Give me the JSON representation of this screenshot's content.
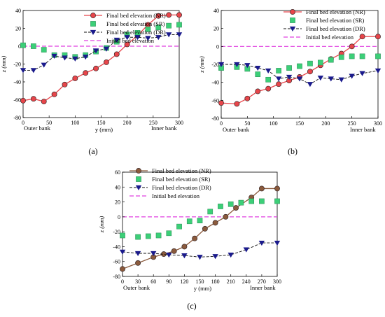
{
  "figure": {
    "colors": {
      "nr_a": "#e8454a",
      "nr_c": "#8b5a3c",
      "sr": "#3ccf78",
      "dr": "#1a1a8c",
      "initial": "#e040e0",
      "axis": "#000000"
    }
  },
  "chart_data": [
    {
      "type": "line",
      "panel_label": "(a)",
      "xlabel": "y (mm)",
      "ylabel": "z (mm)",
      "xlim": [
        0,
        300
      ],
      "ylim": [
        -80,
        40
      ],
      "xticks": [
        0,
        50,
        100,
        150,
        200,
        250,
        300
      ],
      "yticks": [
        -80,
        -60,
        -40,
        -20,
        0,
        20,
        40
      ],
      "annotations": [
        "Outer bank",
        "Inner bank"
      ],
      "legend_position": "top-right",
      "series": [
        {
          "name": "Final bed elevation (NR)",
          "key": "nr",
          "marker": "circle",
          "x": [
            0,
            20,
            40,
            60,
            80,
            100,
            120,
            140,
            160,
            180,
            200,
            220,
            240,
            260,
            280,
            300
          ],
          "y": [
            -61,
            -59,
            -62,
            -54,
            -43,
            -36,
            -30,
            -25,
            -18,
            -9,
            2,
            12,
            24,
            34,
            35,
            35
          ]
        },
        {
          "name": "Final bed elevation (SR)",
          "key": "sr",
          "marker": "square",
          "x": [
            0,
            20,
            40,
            60,
            80,
            100,
            120,
            140,
            160,
            180,
            200,
            220,
            240,
            260,
            280,
            300
          ],
          "y": [
            1,
            0,
            -4,
            -10,
            -10,
            -12,
            -10,
            -6,
            -2,
            5,
            13,
            15,
            19,
            21,
            23,
            24
          ]
        },
        {
          "name": "Final bed elevation (DR)",
          "key": "dr",
          "marker": "triangle-down",
          "x": [
            0,
            20,
            40,
            60,
            80,
            100,
            120,
            140,
            160,
            180,
            200,
            220,
            240,
            260,
            280,
            300
          ],
          "y": [
            -27,
            -27,
            -21,
            -11,
            -13,
            -14,
            -12,
            -5,
            -3,
            7,
            10,
            10,
            9,
            10,
            13,
            13
          ]
        },
        {
          "name": "Initial bed elevation",
          "key": "initial",
          "marker": "none",
          "x": [
            0,
            300
          ],
          "y": [
            0,
            0
          ]
        }
      ]
    },
    {
      "type": "line",
      "panel_label": "(b)",
      "xlabel": "",
      "ylabel": "z (mm)",
      "xlim": [
        0,
        300
      ],
      "ylim": [
        -80,
        40
      ],
      "xticks": [
        0,
        50,
        100,
        150,
        200,
        250,
        300
      ],
      "yticks": [
        -80,
        -60,
        -40,
        -20,
        0,
        20,
        40
      ],
      "annotations": [
        "Outer bank",
        "Inner bank"
      ],
      "legend_position": "top-right",
      "series": [
        {
          "name": "Final bed elevation (NR)",
          "key": "nr",
          "marker": "circle",
          "x": [
            0,
            30,
            50,
            70,
            90,
            110,
            130,
            150,
            170,
            190,
            210,
            230,
            250,
            270,
            300
          ],
          "y": [
            -63,
            -64,
            -58,
            -50,
            -47,
            -42,
            -38,
            -34,
            -28,
            -21,
            -14,
            -8,
            0,
            11,
            11
          ]
        },
        {
          "name": "Final bed elevation (SR)",
          "key": "sr",
          "marker": "square",
          "x": [
            0,
            30,
            50,
            70,
            90,
            110,
            130,
            150,
            170,
            190,
            210,
            230,
            250,
            270,
            300
          ],
          "y": [
            -24,
            -23,
            -25,
            -31,
            -37,
            -27,
            -24,
            -22,
            -19,
            -18,
            -15,
            -12,
            -11,
            -11,
            -11
          ]
        },
        {
          "name": "Final bed elevation (DR)",
          "key": "dr",
          "marker": "triangle-down",
          "x": [
            0,
            30,
            50,
            70,
            90,
            110,
            130,
            150,
            170,
            190,
            210,
            230,
            250,
            270,
            300
          ],
          "y": [
            -20,
            -20,
            -21,
            -24,
            -27,
            -36,
            -34,
            -36,
            -42,
            -35,
            -36,
            -37,
            -33,
            -30,
            -27
          ]
        },
        {
          "name": "Initial bed elevation",
          "key": "initial",
          "marker": "none",
          "x": [
            0,
            300
          ],
          "y": [
            0,
            0
          ]
        }
      ]
    },
    {
      "type": "line",
      "panel_label": "(c)",
      "xlabel": "y (mm)",
      "ylabel": "z (mm)",
      "xlim": [
        0,
        300
      ],
      "ylim": [
        -80,
        60
      ],
      "xticks": [
        0,
        30,
        60,
        90,
        120,
        150,
        180,
        210,
        240,
        270,
        300
      ],
      "yticks": [
        -80,
        -60,
        -40,
        -20,
        0,
        20,
        40,
        60
      ],
      "annotations": [
        "Outer bank",
        "Inner bank"
      ],
      "legend_position": "top-right",
      "series": [
        {
          "name": "Final bed elevation (NR)",
          "key": "nr",
          "marker": "circle",
          "x": [
            0,
            30,
            60,
            80,
            100,
            120,
            140,
            160,
            180,
            200,
            220,
            250,
            270,
            300
          ],
          "y": [
            -70,
            -62,
            -54,
            -50,
            -46,
            -40,
            -29,
            -16,
            -8,
            0,
            12,
            26,
            38,
            38
          ]
        },
        {
          "name": "Final bed elevation (SR)",
          "key": "sr",
          "marker": "square",
          "x": [
            0,
            30,
            50,
            70,
            90,
            110,
            130,
            150,
            170,
            190,
            210,
            230,
            250,
            270,
            300
          ],
          "y": [
            -25,
            -27,
            -26,
            -25,
            -22,
            -13,
            -6,
            -5,
            7,
            14,
            17,
            19,
            21,
            21,
            21
          ]
        },
        {
          "name": "Final bed elevation (DR)",
          "key": "dr",
          "marker": "triangle-down",
          "x": [
            0,
            30,
            60,
            90,
            120,
            150,
            180,
            210,
            240,
            270,
            300
          ],
          "y": [
            -47,
            -49,
            -49,
            -51,
            -52,
            -54,
            -53,
            -51,
            -44,
            -35,
            -35
          ]
        },
        {
          "name": "Initial bed elevation",
          "key": "initial",
          "marker": "none",
          "x": [
            0,
            300
          ],
          "y": [
            0,
            0
          ]
        }
      ]
    }
  ]
}
